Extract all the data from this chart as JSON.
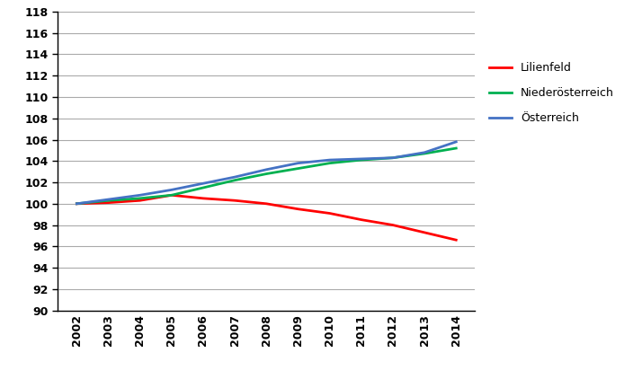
{
  "years": [
    2002,
    2003,
    2004,
    2005,
    2006,
    2007,
    2008,
    2009,
    2010,
    2011,
    2012,
    2013,
    2014
  ],
  "lilienfeld": [
    100.0,
    100.1,
    100.3,
    100.8,
    100.5,
    100.3,
    100.0,
    99.5,
    99.1,
    98.5,
    98.0,
    97.3,
    96.6
  ],
  "niederoesterreich": [
    100.0,
    100.3,
    100.5,
    100.8,
    101.5,
    102.2,
    102.8,
    103.3,
    103.8,
    104.1,
    104.3,
    104.7,
    105.2
  ],
  "oesterreich": [
    100.0,
    100.4,
    100.8,
    101.3,
    101.9,
    102.5,
    103.2,
    103.8,
    104.1,
    104.2,
    104.3,
    104.8,
    105.8
  ],
  "line_colors": {
    "lilienfeld": "#ff0000",
    "niederoesterreich": "#00b050",
    "oesterreich": "#4472c4"
  },
  "legend_labels": [
    "Lilienfeld",
    "Niederösterreich",
    "Österreich"
  ],
  "ylim": [
    90,
    118
  ],
  "yticks": [
    90,
    92,
    94,
    96,
    98,
    100,
    102,
    104,
    106,
    108,
    110,
    112,
    114,
    116,
    118
  ],
  "line_width": 2.0,
  "grid_color": "#aaaaaa",
  "background_color": "#ffffff"
}
